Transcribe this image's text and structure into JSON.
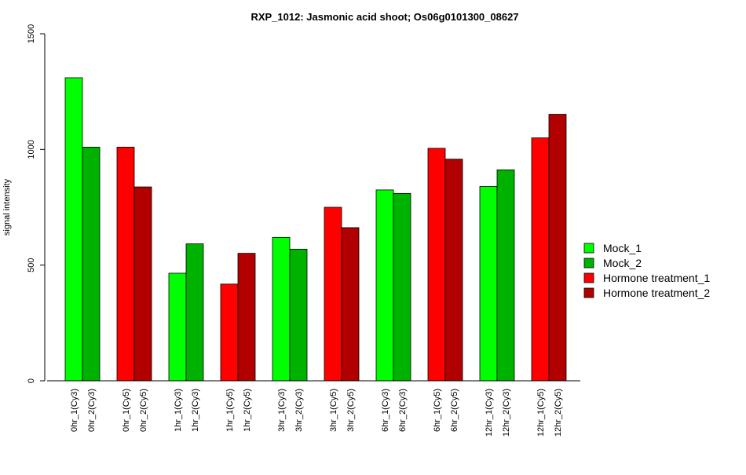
{
  "chart_data": {
    "type": "bar",
    "title": "RXP_1012: Jasmonic acid shoot; Os06g0101300_08627",
    "ylabel": "signal intensity",
    "ylim": [
      0,
      1500
    ],
    "yticks": [
      0,
      500,
      1000,
      1500
    ],
    "categories": [
      "0hr_1(Cy3)",
      "0hr_2(Cy3)",
      "0hr_1(Cy5)",
      "0hr_2(Cy5)",
      "1hr_1(Cy3)",
      "1hr_2(Cy3)",
      "1hr_1(Cy5)",
      "1hr_2(Cy5)",
      "3hr_1(Cy3)",
      "3hr_2(Cy3)",
      "3hr_1(Cy5)",
      "3hr_2(Cy5)",
      "6hr_1(Cy3)",
      "6hr_2(Cy3)",
      "6hr_1(Cy5)",
      "6hr_2(Cy5)",
      "12hr_1(Cy3)",
      "12hr_2(Cy3)",
      "12hr_1(Cy5)",
      "12hr_2(Cy5)"
    ],
    "values": [
      1310,
      1010,
      1010,
      838,
      465,
      592,
      418,
      551,
      620,
      569,
      750,
      662,
      825,
      810,
      1005,
      958,
      840,
      912,
      1050,
      1152
    ],
    "series_index": [
      0,
      1,
      2,
      3,
      0,
      1,
      2,
      3,
      0,
      1,
      2,
      3,
      0,
      1,
      2,
      3,
      0,
      1,
      2,
      3
    ],
    "legend": [
      {
        "name": "Mock_1",
        "color": "#00FF00"
      },
      {
        "name": "Mock_2",
        "color": "#00B200"
      },
      {
        "name": "Hormone treatment_1",
        "color": "#FF0000"
      },
      {
        "name": "Hormone treatment_2",
        "color": "#B20000"
      }
    ],
    "legend_position": "right",
    "grid": false
  }
}
